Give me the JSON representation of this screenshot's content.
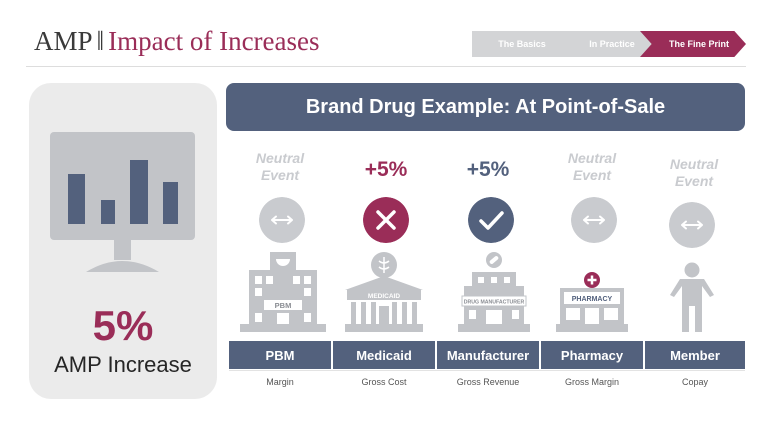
{
  "header": {
    "brand": "AMP",
    "separator": "‖",
    "title": "Impact of Increases"
  },
  "nav_steps": [
    {
      "label": "The Basics",
      "active": false
    },
    {
      "label": "In Practice",
      "active": false
    },
    {
      "label": "The Fine Print",
      "active": true
    }
  ],
  "left_panel": {
    "icon": "monitor-bar-chart-icon",
    "percent": "5%",
    "label": "AMP Increase"
  },
  "banner": "Brand Drug Example: At Point-of-Sale",
  "columns": [
    {
      "name": "PBM",
      "impact_line1": "Neutral",
      "impact_line2": "Event",
      "badge_icon": "double-arrow-icon",
      "building_sign": "PBM",
      "sublabel": "Margin"
    },
    {
      "name": "Medicaid",
      "impact": "+5%",
      "badge_icon": "x-mark-icon",
      "building_sign": "MEDICAID",
      "sublabel": "Gross Cost"
    },
    {
      "name": "Manufacturer",
      "impact": "+5%",
      "badge_icon": "checkmark-icon",
      "building_sign": "DRUG MANUFACTURER",
      "sublabel": "Gross Revenue"
    },
    {
      "name": "Pharmacy",
      "impact_line1": "Neutral",
      "impact_line2": "Event",
      "badge_icon": "double-arrow-icon",
      "building_sign": "PHARMACY",
      "sublabel": "Gross Margin"
    },
    {
      "name": "Member",
      "impact_line1": "Neutral",
      "impact_line2": "Event",
      "badge_icon": "double-arrow-icon",
      "sublabel": "Copay"
    }
  ],
  "colors": {
    "brand_maroon": "#9a2d58",
    "navy": "#53617d",
    "light_grey": "#c9cbcf",
    "panel_grey": "#ebebeb"
  }
}
